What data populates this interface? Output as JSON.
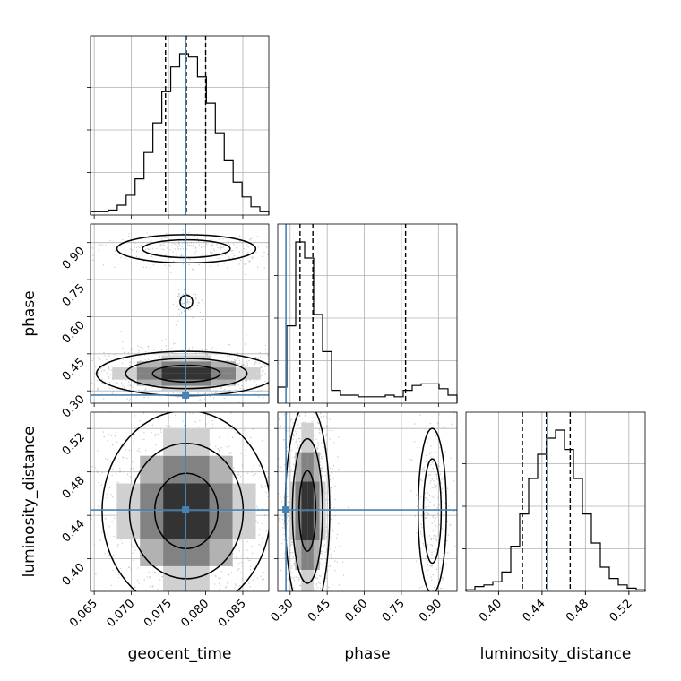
{
  "chart_data": {
    "type": "corner",
    "parameters": [
      "geocent_time",
      "phase",
      "luminosity_distance"
    ],
    "ranges": {
      "geocent_time": [
        0.0645,
        0.0885
      ],
      "phase": [
        0.25,
        0.975
      ],
      "luminosity_distance": [
        0.37,
        0.535
      ]
    },
    "ticks": {
      "geocent_time": [
        0.065,
        0.07,
        0.075,
        0.08,
        0.085
      ],
      "phase": [
        0.3,
        0.45,
        0.6,
        0.75,
        0.9
      ],
      "luminosity_distance": [
        0.4,
        0.44,
        0.48,
        0.52
      ]
    },
    "tick_labels": {
      "geocent_time": [
        "0.065",
        "0.070",
        "0.075",
        "0.080",
        "0.085"
      ],
      "phase": [
        "0.30",
        "0.45",
        "0.60",
        "0.75",
        "0.90"
      ],
      "luminosity_distance": [
        "0.40",
        "0.44",
        "0.48",
        "0.52"
      ]
    },
    "truths": {
      "geocent_time": 0.0773,
      "phase": 0.283,
      "luminosity_distance": 0.445
    },
    "quantiles": {
      "geocent_time": [
        0.0746,
        0.0774,
        0.08
      ],
      "phase": [
        0.34,
        0.392,
        0.767
      ],
      "luminosity_distance": [
        0.422,
        0.444,
        0.466
      ]
    },
    "histograms": {
      "geocent_time": [
        2,
        2,
        3,
        6,
        12,
        22,
        38,
        56,
        75,
        90,
        98,
        96,
        84,
        68,
        50,
        33,
        20,
        11,
        5,
        2
      ],
      "phase": [
        10,
        48,
        100,
        90,
        55,
        32,
        8,
        5,
        5,
        4,
        4,
        4,
        5,
        4,
        8,
        11,
        12,
        12,
        9,
        5
      ],
      "luminosity_distance": [
        1,
        3,
        4,
        6,
        12,
        28,
        48,
        70,
        85,
        95,
        100,
        88,
        70,
        48,
        30,
        15,
        8,
        4,
        2,
        1
      ]
    },
    "grid": true,
    "colors": {
      "truth": "#4682b4",
      "contour": "#000000",
      "histogram": "#000000",
      "quantile": "#000000"
    }
  }
}
